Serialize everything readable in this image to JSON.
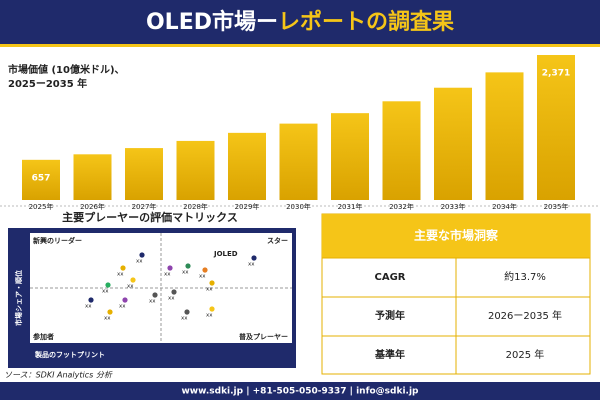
{
  "header": {
    "title_part1": "OLED市場ー",
    "title_part2": "レポートの調査果"
  },
  "chart_data": {
    "type": "bar",
    "subtitle_line1": "市場価値 (10億米ドル)、",
    "subtitle_line2": "2025ー2035 年",
    "categories": [
      "2025年",
      "2026年",
      "2027年",
      "2028年",
      "2029年",
      "2030年",
      "2031年",
      "2032年",
      "2033年",
      "2034年",
      "2035年"
    ],
    "values": [
      657,
      747,
      849,
      966,
      1098,
      1249,
      1420,
      1614,
      1836,
      2087,
      2371
    ],
    "value_labels": [
      "657",
      null,
      null,
      null,
      null,
      null,
      null,
      null,
      null,
      null,
      "2,371"
    ],
    "color": "#e6b000"
  },
  "matrix": {
    "title": "主要プレーヤーの評価マトリックス",
    "top_left": "新興のリーダー",
    "top_right": "スター",
    "bottom_left": "参加者",
    "bottom_right": "普及プレーヤー",
    "y_axis": "市場シェア・順位",
    "x_axis": "製品のフットプリント",
    "highlight": "JOLED",
    "point_labels": [
      "xx",
      "xx",
      "xx",
      "xx",
      "xx",
      "xx",
      "xx",
      "xx",
      "xx",
      "xx",
      "xx",
      "xx",
      "xx",
      "xx",
      "xx",
      "xx"
    ]
  },
  "insights": {
    "title": "主要な市場洞察",
    "rows": [
      [
        "CAGR",
        "約13.7%"
      ],
      [
        "予測年",
        "2026ー2035 年"
      ],
      [
        "基準年",
        "2025 年"
      ]
    ]
  },
  "source": "ソース：SDKI Analytics 分析",
  "footer": "www.sdki.jp | +81-505-050-9337 | info@sdki.jp"
}
